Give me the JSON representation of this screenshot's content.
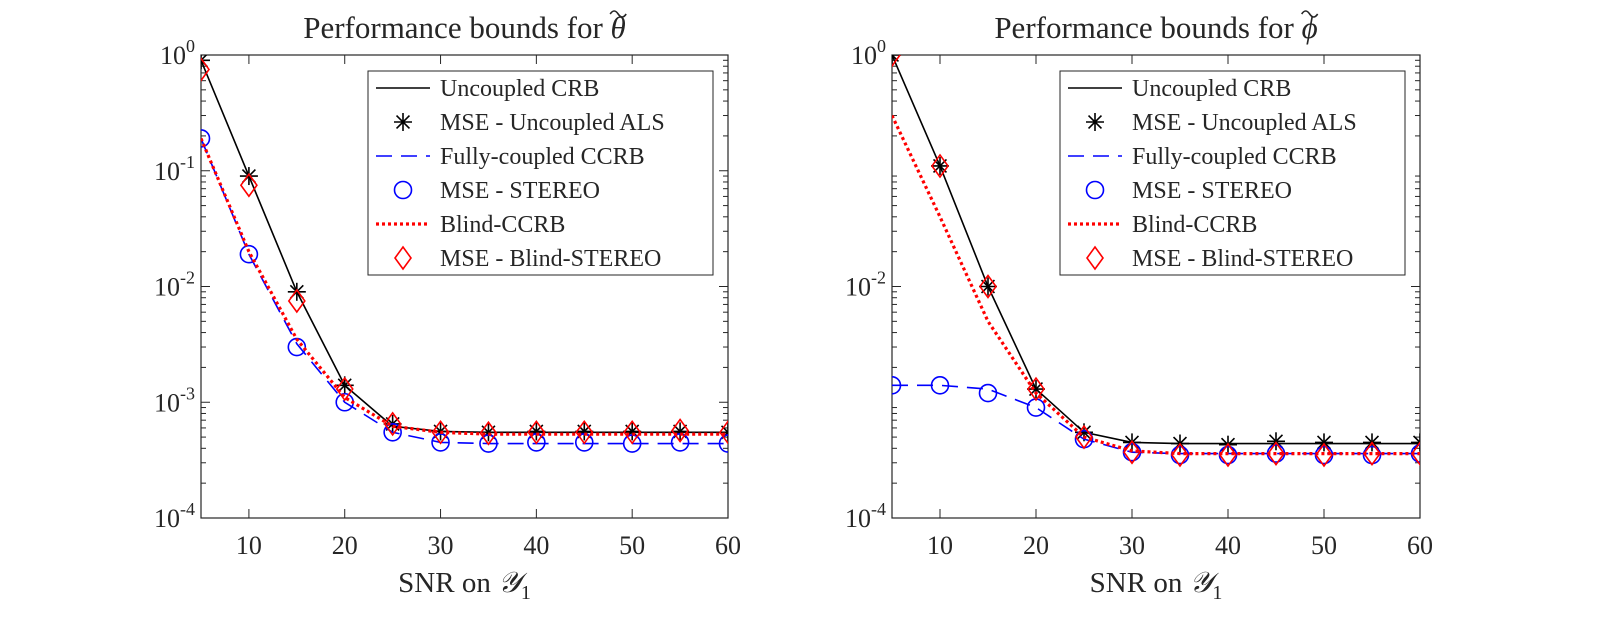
{
  "chart_data": [
    {
      "type": "line",
      "title_prefix": "Performance bounds for ",
      "title_symbol": "θ",
      "xlabel_prefix": "SNR on ",
      "xlabel_symbol": "𝒴",
      "xlabel_sub": "1",
      "ylabel": "",
      "xlim": [
        5,
        60
      ],
      "ylim": [
        0.0001,
        1
      ],
      "yscale": "log",
      "xticks": [
        10,
        20,
        30,
        40,
        50,
        60
      ],
      "yticks": [
        {
          "value": 0.0001,
          "base": "10",
          "exp": "-4"
        },
        {
          "value": 0.001,
          "base": "10",
          "exp": "-3"
        },
        {
          "value": 0.01,
          "base": "10",
          "exp": "-2"
        },
        {
          "value": 0.1,
          "base": "10",
          "exp": "-1"
        },
        {
          "value": 1,
          "base": "10",
          "exp": "0"
        }
      ],
      "legend_position": "top-right",
      "x": [
        5,
        10,
        15,
        20,
        25,
        30,
        35,
        40,
        45,
        50,
        55,
        60
      ],
      "series": [
        {
          "name": "Uncoupled CRB",
          "style": "solid-line",
          "color": "#000000",
          "values": [
            0.9,
            0.09,
            0.009,
            0.0014,
            0.00062,
            0.00056,
            0.00055,
            0.00055,
            0.00055,
            0.00055,
            0.00055,
            0.00055
          ]
        },
        {
          "name": "MSE - Uncoupled ALS",
          "style": "star-marker",
          "color": "#000000",
          "values": [
            0.9,
            0.09,
            0.009,
            0.0014,
            0.00065,
            0.00056,
            0.00055,
            0.00056,
            0.00056,
            0.00056,
            0.00056,
            0.00055
          ]
        },
        {
          "name": "Fully-coupled CCRB",
          "style": "dashed-line",
          "color": "#0000ff",
          "values": [
            0.19,
            0.019,
            0.0032,
            0.001,
            0.00055,
            0.00045,
            0.00044,
            0.00044,
            0.00044,
            0.00044,
            0.00044,
            0.00044
          ]
        },
        {
          "name": "MSE - STEREO",
          "style": "circle-marker",
          "color": "#0000ff",
          "values": [
            0.19,
            0.019,
            0.003,
            0.001,
            0.00055,
            0.00045,
            0.00044,
            0.00045,
            0.00045,
            0.00044,
            0.00045,
            0.00044
          ]
        },
        {
          "name": "Blind-CCRB",
          "style": "dotted-line",
          "color": "#ff0000",
          "values": [
            0.19,
            0.02,
            0.0035,
            0.0011,
            0.00062,
            0.00055,
            0.00053,
            0.00053,
            0.00053,
            0.00053,
            0.00053,
            0.00053
          ]
        },
        {
          "name": "MSE - Blind-STEREO",
          "style": "diamond-marker",
          "color": "#ff0000",
          "values": [
            0.75,
            0.075,
            0.0075,
            0.0013,
            0.00065,
            0.00055,
            0.00054,
            0.00055,
            0.00055,
            0.00055,
            0.00057,
            0.00055
          ]
        }
      ]
    },
    {
      "type": "line",
      "title_prefix": "Performance bounds for ",
      "title_symbol": "ϕ",
      "xlabel_prefix": "SNR on ",
      "xlabel_symbol": "𝒴",
      "xlabel_sub": "1",
      "ylabel": "",
      "xlim": [
        5,
        60
      ],
      "ylim": [
        0.0001,
        1
      ],
      "yscale": "log",
      "xticks": [
        10,
        20,
        30,
        40,
        50,
        60
      ],
      "yticks": [
        {
          "value": 0.0001,
          "base": "10",
          "exp": "-4"
        },
        {
          "value": 0.01,
          "base": "10",
          "exp": "-2"
        },
        {
          "value": 1,
          "base": "10",
          "exp": "0"
        }
      ],
      "legend_position": "top-right",
      "x": [
        5,
        10,
        15,
        20,
        25,
        30,
        35,
        40,
        45,
        50,
        55,
        60
      ],
      "series": [
        {
          "name": "Uncoupled CRB",
          "style": "solid-line",
          "color": "#000000",
          "values": [
            1,
            0.11,
            0.01,
            0.0013,
            0.00055,
            0.00045,
            0.00044,
            0.00044,
            0.00044,
            0.00044,
            0.00044,
            0.00044
          ]
        },
        {
          "name": "MSE - Uncoupled ALS",
          "style": "star-marker",
          "color": "#000000",
          "values": [
            1,
            0.11,
            0.01,
            0.0013,
            0.00055,
            0.00045,
            0.00044,
            0.00043,
            0.00046,
            0.00045,
            0.00045,
            0.00045
          ]
        },
        {
          "name": "Fully-coupled CCRB",
          "style": "dashed-line",
          "color": "#0000ff",
          "values": [
            0.0014,
            0.0014,
            0.0013,
            0.0009,
            0.00048,
            0.00037,
            0.00036,
            0.00036,
            0.00036,
            0.00036,
            0.00036,
            0.00036
          ]
        },
        {
          "name": "MSE - STEREO",
          "style": "circle-marker",
          "color": "#0000ff",
          "values": [
            0.0014,
            0.0014,
            0.0012,
            0.0009,
            0.00048,
            0.00037,
            0.00035,
            0.00035,
            0.00036,
            0.00035,
            0.00035,
            0.00036
          ]
        },
        {
          "name": "Blind-CCRB",
          "style": "dotted-line",
          "color": "#ff0000",
          "values": [
            0.3,
            0.04,
            0.005,
            0.0012,
            0.0005,
            0.00038,
            0.00036,
            0.00036,
            0.00036,
            0.00036,
            0.00036,
            0.00036
          ]
        },
        {
          "name": "MSE - Blind-STEREO",
          "style": "diamond-marker",
          "color": "#ff0000",
          "values": [
            1,
            0.11,
            0.01,
            0.0013,
            0.0005,
            0.00037,
            0.00035,
            0.00035,
            0.00036,
            0.00035,
            0.00036,
            0.00036
          ]
        }
      ]
    }
  ]
}
